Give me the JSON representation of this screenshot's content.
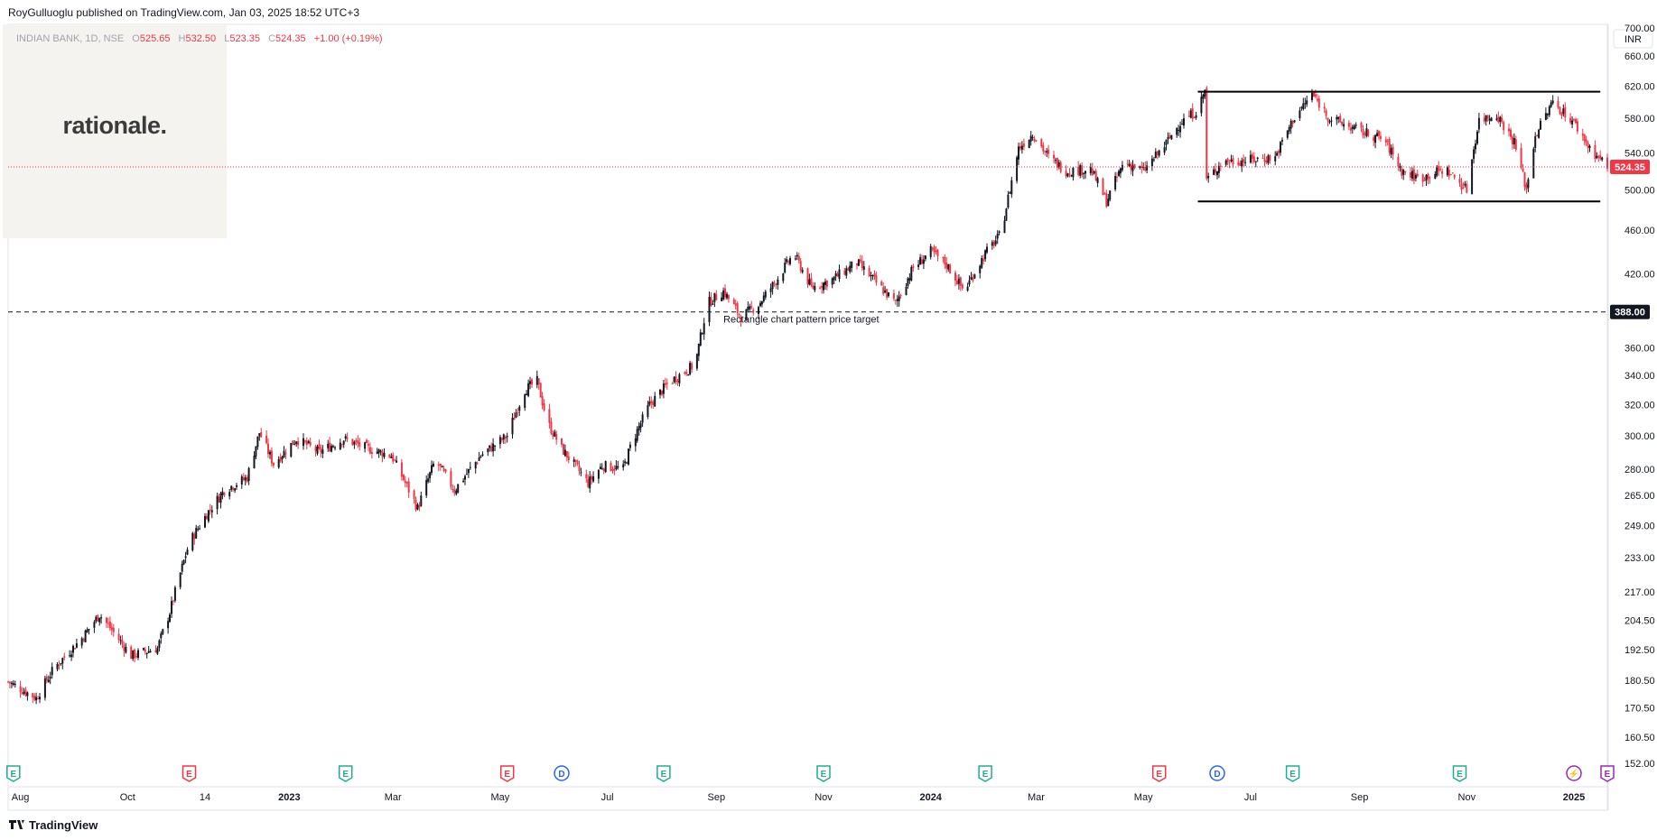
{
  "header": {
    "published": "RoyGulluoglu published on TradingView.com, Jan 03, 2025 18:52 UTC+3"
  },
  "legend": {
    "symbol": "INDIAN BANK, 1D, NSE",
    "o_label": "O",
    "o": "525.65",
    "h_label": "H",
    "h": "532.50",
    "l_label": "L",
    "l": "523.35",
    "c_label": "C",
    "c": "524.35",
    "change": "+1.00 (+0.19%)"
  },
  "overlay_logo": {
    "text": "rationale."
  },
  "currency": "INR",
  "footer": {
    "brand": "TradingView"
  },
  "colors": {
    "up": "#131722",
    "down": "#f23645",
    "last_price": "#f23645",
    "earnings": "#22ab94",
    "earnings_neg": "#f23645",
    "dividend": "#2962ff",
    "split": "#9c27b0"
  },
  "chart_data": {
    "type": "candlestick",
    "title": "",
    "symbol": "INDIAN BANK",
    "interval": "1D",
    "exchange": "NSE",
    "scale": "log",
    "ylim": [
      145,
      705
    ],
    "y_ticks": [
      152.0,
      160.5,
      170.5,
      180.5,
      192.5,
      204.5,
      217.0,
      233.0,
      249.0,
      265.0,
      280.0,
      300.0,
      320.0,
      340.0,
      360.0,
      420.0,
      460.0,
      500.0,
      540.0,
      580.0,
      620.0,
      660.0,
      700.0
    ],
    "y_tick_labels": [
      "152.00",
      "160.50",
      "170.50",
      "180.50",
      "192.50",
      "204.50",
      "217.00",
      "233.00",
      "249.00",
      "265.00",
      "280.00",
      "300.00",
      "320.00",
      "340.00",
      "360.00",
      "420.00",
      "460.00",
      "500.00",
      "540.00",
      "580.00",
      "620.00",
      "660.00",
      "700.00"
    ],
    "x_range": [
      "2022-07-25",
      "2025-01-20"
    ],
    "x_ticks": [
      {
        "date": "2022-08-01",
        "label": "Aug"
      },
      {
        "date": "2022-10-01",
        "label": "Oct"
      },
      {
        "date": "2022-11-14",
        "label": "14"
      },
      {
        "date": "2023-01-01",
        "label": "2023"
      },
      {
        "date": "2023-03-01",
        "label": "Mar"
      },
      {
        "date": "2023-05-01",
        "label": "May"
      },
      {
        "date": "2023-07-01",
        "label": "Jul"
      },
      {
        "date": "2023-09-01",
        "label": "Sep"
      },
      {
        "date": "2023-11-01",
        "label": "Nov"
      },
      {
        "date": "2024-01-01",
        "label": "2024"
      },
      {
        "date": "2024-03-01",
        "label": "Mar"
      },
      {
        "date": "2024-05-01",
        "label": "May"
      },
      {
        "date": "2024-07-01",
        "label": "Jul"
      },
      {
        "date": "2024-09-01",
        "label": "Sep"
      },
      {
        "date": "2024-11-01",
        "label": "Nov"
      },
      {
        "date": "2025-01-01",
        "label": "2025"
      }
    ],
    "price_path": [
      [
        "2022-07-25",
        180
      ],
      [
        "2022-08-10",
        174
      ],
      [
        "2022-08-20",
        185
      ],
      [
        "2022-09-05",
        197
      ],
      [
        "2022-09-15",
        207
      ],
      [
        "2022-10-03",
        190
      ],
      [
        "2022-10-18",
        193
      ],
      [
        "2022-10-25",
        208
      ],
      [
        "2022-11-05",
        240
      ],
      [
        "2022-11-15",
        255
      ],
      [
        "2022-11-25",
        268
      ],
      [
        "2022-12-08",
        275
      ],
      [
        "2022-12-15",
        302
      ],
      [
        "2022-12-23",
        283
      ],
      [
        "2023-01-05",
        298
      ],
      [
        "2023-01-18",
        290
      ],
      [
        "2023-02-01",
        298
      ],
      [
        "2023-02-15",
        292
      ],
      [
        "2023-02-28",
        288
      ],
      [
        "2023-03-15",
        258
      ],
      [
        "2023-03-25",
        285
      ],
      [
        "2023-04-05",
        268
      ],
      [
        "2023-04-20",
        288
      ],
      [
        "2023-05-05",
        300
      ],
      [
        "2023-05-15",
        330
      ],
      [
        "2023-05-22",
        336
      ],
      [
        "2023-05-28",
        308
      ],
      [
        "2023-06-05",
        292
      ],
      [
        "2023-06-20",
        272
      ],
      [
        "2023-06-28",
        282
      ],
      [
        "2023-07-10",
        280
      ],
      [
        "2023-07-15",
        296
      ],
      [
        "2023-07-25",
        320
      ],
      [
        "2023-08-05",
        335
      ],
      [
        "2023-08-20",
        348
      ],
      [
        "2023-08-27",
        395
      ],
      [
        "2023-09-05",
        405
      ],
      [
        "2023-09-15",
        384
      ],
      [
        "2023-09-25",
        394
      ],
      [
        "2023-10-05",
        414
      ],
      [
        "2023-10-15",
        438
      ],
      [
        "2023-10-25",
        408
      ],
      [
        "2023-11-05",
        414
      ],
      [
        "2023-11-20",
        430
      ],
      [
        "2023-12-01",
        412
      ],
      [
        "2023-12-12",
        395
      ],
      [
        "2023-12-22",
        425
      ],
      [
        "2024-01-01",
        440
      ],
      [
        "2024-01-10",
        428
      ],
      [
        "2024-01-20",
        405
      ],
      [
        "2024-02-01",
        438
      ],
      [
        "2024-02-10",
        456
      ],
      [
        "2024-02-20",
        545
      ],
      [
        "2024-02-28",
        562
      ],
      [
        "2024-03-08",
        535
      ],
      [
        "2024-03-18",
        520
      ],
      [
        "2024-04-01",
        522
      ],
      [
        "2024-04-10",
        488
      ],
      [
        "2024-04-20",
        530
      ],
      [
        "2024-05-01",
        520
      ],
      [
        "2024-05-12",
        545
      ],
      [
        "2024-05-22",
        575
      ],
      [
        "2024-06-01",
        590
      ],
      [
        "2024-06-05",
        615
      ],
      [
        "2024-06-06",
        510
      ],
      [
        "2024-06-15",
        530
      ],
      [
        "2024-07-01",
        532
      ],
      [
        "2024-07-15",
        535
      ],
      [
        "2024-07-25",
        578
      ],
      [
        "2024-08-05",
        610
      ],
      [
        "2024-08-15",
        580
      ],
      [
        "2024-09-01",
        565
      ],
      [
        "2024-09-15",
        555
      ],
      [
        "2024-09-25",
        520
      ],
      [
        "2024-10-05",
        512
      ],
      [
        "2024-10-20",
        522
      ],
      [
        "2024-11-01",
        500
      ],
      [
        "2024-11-08",
        578
      ],
      [
        "2024-11-18",
        585
      ],
      [
        "2024-11-28",
        552
      ],
      [
        "2024-12-05",
        500
      ],
      [
        "2024-12-10",
        560
      ],
      [
        "2024-12-20",
        600
      ],
      [
        "2025-01-01",
        575
      ],
      [
        "2025-01-10",
        545
      ],
      [
        "2025-01-20",
        524.35
      ]
    ],
    "series": [
      {
        "name": "INDIAN BANK",
        "values_source": "price_path"
      }
    ],
    "last_price": 524.35,
    "last_price_label": "524.35",
    "horizontal_level": {
      "price": 388.0,
      "label": "388.00",
      "style": "dashed"
    },
    "rectangle_pattern": {
      "start": "2024-06-01",
      "end": "2025-01-16",
      "top": 613,
      "bottom": 488
    },
    "annotations": [
      {
        "text": "Rectangle chart pattern price target",
        "date": "2023-09-05",
        "price": 388.0
      }
    ],
    "events": [
      {
        "date": "2022-07-28",
        "kind": "E",
        "color": "#22ab94"
      },
      {
        "date": "2022-11-05",
        "kind": "E",
        "color": "#f23645"
      },
      {
        "date": "2023-02-02",
        "kind": "E",
        "color": "#22ab94"
      },
      {
        "date": "2023-05-05",
        "kind": "E",
        "color": "#f23645"
      },
      {
        "date": "2023-06-05",
        "kind": "D",
        "color": "#2962ff"
      },
      {
        "date": "2023-08-02",
        "kind": "E",
        "color": "#22ab94"
      },
      {
        "date": "2023-11-01",
        "kind": "E",
        "color": "#22ab94"
      },
      {
        "date": "2024-02-01",
        "kind": "E",
        "color": "#22ab94"
      },
      {
        "date": "2024-05-10",
        "kind": "E",
        "color": "#f23645"
      },
      {
        "date": "2024-06-12",
        "kind": "D",
        "color": "#2962ff"
      },
      {
        "date": "2024-07-25",
        "kind": "E",
        "color": "#22ab94"
      },
      {
        "date": "2024-10-28",
        "kind": "E",
        "color": "#22ab94"
      },
      {
        "date": "2025-01-01",
        "kind": "⚡",
        "color": "#9c27b0"
      },
      {
        "date": "2025-01-20",
        "kind": "E",
        "color": "#9c27b0"
      }
    ]
  }
}
